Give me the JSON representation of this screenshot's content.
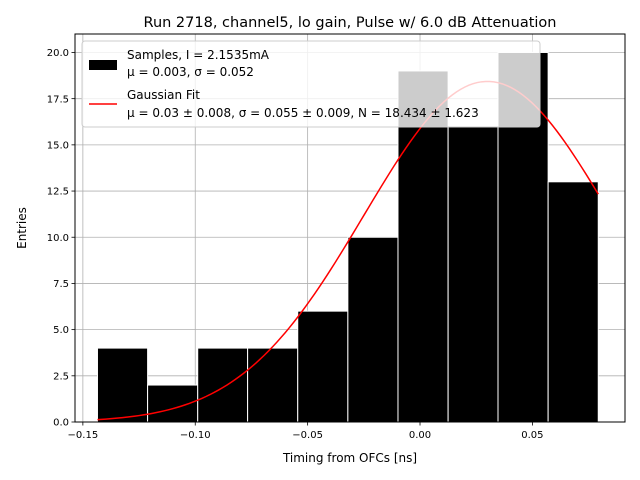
{
  "chart_data": {
    "type": "bar",
    "title": "Run 2718, channel5, lo gain, Pulse w/ 6.0 dB Attenuation",
    "xlabel": "Timing from OFCs [ns]",
    "ylabel": "Entries",
    "xlim": [
      -0.1535,
      0.0912
    ],
    "ylim": [
      0,
      21
    ],
    "grid": true,
    "legend_position": "upper-left",
    "x_ticks": [
      {
        "value": -0.15,
        "label": "−0.15"
      },
      {
        "value": -0.1,
        "label": "−0.10"
      },
      {
        "value": -0.05,
        "label": "−0.05"
      },
      {
        "value": 0.0,
        "label": "0.00"
      },
      {
        "value": 0.05,
        "label": "0.05"
      }
    ],
    "y_ticks": [
      {
        "value": 0,
        "label": "0.0"
      },
      {
        "value": 2.5,
        "label": "2.5"
      },
      {
        "value": 5,
        "label": "5.0"
      },
      {
        "value": 7.5,
        "label": "7.5"
      },
      {
        "value": 10,
        "label": "10.0"
      },
      {
        "value": 12.5,
        "label": "12.5"
      },
      {
        "value": 15,
        "label": "15.0"
      },
      {
        "value": 17.5,
        "label": "17.5"
      },
      {
        "value": 20,
        "label": "20.0"
      }
    ],
    "histogram": {
      "name_line1": "Samples, I = 2.1535mA",
      "name_line2": "μ = 0.003, σ = 0.052",
      "color": "#000000",
      "bin_edges": [
        -0.1435,
        -0.1212,
        -0.0989,
        -0.0767,
        -0.0544,
        -0.0321,
        -0.0098,
        0.0125,
        0.0347,
        0.057,
        0.0793
      ],
      "counts": [
        4,
        2,
        4,
        4,
        6,
        10,
        19,
        16,
        20,
        13
      ]
    },
    "fit": {
      "name_line1": "Gaussian Fit",
      "name_line2": "μ = 0.03 ± 0.008, σ = 0.055 ± 0.009, N = 18.434 ± 1.623",
      "color": "#ff0000",
      "mu": 0.03,
      "sigma": 0.055,
      "N": 18.434,
      "x_range": [
        -0.1435,
        0.0793
      ]
    }
  }
}
